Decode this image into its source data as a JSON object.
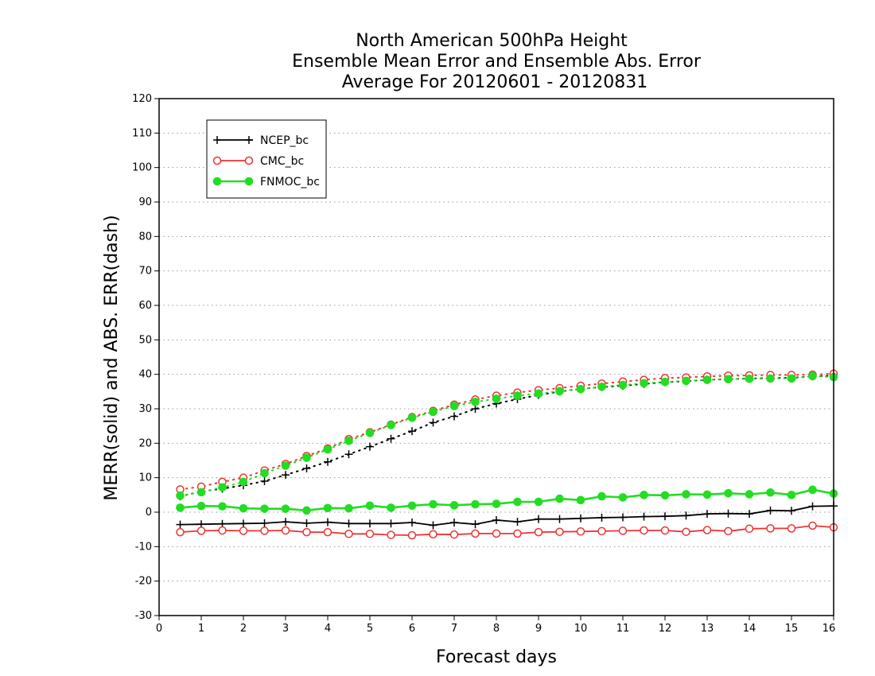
{
  "chart_data": {
    "type": "line",
    "title_lines": [
      "North American 500hPa Height",
      "Ensemble Mean Error and Ensemble Abs. Error",
      "Average For 20120601 - 20120831"
    ],
    "xlabel": "Forecast days",
    "ylabel": "MERR(solid) and ABS. ERR(dash)",
    "xlim": [
      0,
      16
    ],
    "ylim": [
      -30,
      120
    ],
    "xticks": [
      0,
      1,
      2,
      3,
      4,
      5,
      6,
      7,
      8,
      9,
      10,
      11,
      12,
      13,
      14,
      15,
      16
    ],
    "yticks": [
      -30,
      -20,
      -10,
      0,
      10,
      20,
      30,
      40,
      50,
      60,
      70,
      80,
      90,
      100,
      110,
      120
    ],
    "grid": "horizontal dotted",
    "legend_placement": "top-left",
    "x": [
      0.5,
      1,
      1.5,
      2,
      2.5,
      3,
      3.5,
      4,
      4.5,
      5,
      5.5,
      6,
      6.5,
      7,
      7.5,
      8,
      8.5,
      9,
      9.5,
      10,
      10.5,
      11,
      11.5,
      12,
      12.5,
      13,
      13.5,
      14,
      14.5,
      15,
      15.5,
      16
    ],
    "series": [
      {
        "name": "NCEP_bc",
        "color": "#000000",
        "marker": "plus",
        "merr": [
          -3.6,
          -3.5,
          -3.4,
          -3.3,
          -3.2,
          -2.8,
          -3.2,
          -2.9,
          -3.3,
          -3.3,
          -3.3,
          -3.0,
          -3.8,
          -3.0,
          -3.5,
          -2.3,
          -2.8,
          -2.0,
          -2.0,
          -1.8,
          -1.6,
          -1.5,
          -1.3,
          -1.2,
          -1.0,
          -0.5,
          -0.4,
          -0.5,
          0.5,
          0.4,
          1.7,
          1.8
        ],
        "abs_err": [
          4.6,
          6.0,
          6.8,
          7.8,
          9.0,
          10.8,
          12.7,
          14.6,
          16.8,
          19.0,
          21.3,
          23.5,
          26.0,
          27.8,
          30.0,
          31.5,
          32.8,
          34.0,
          35.0,
          35.8,
          36.3,
          36.7,
          37.2,
          37.7,
          38.0,
          38.4,
          38.6,
          38.8,
          38.9,
          39.0,
          39.4,
          39.6
        ]
      },
      {
        "name": "CMC_bc",
        "color": "#ee3333",
        "marker": "open-circle",
        "merr": [
          -5.8,
          -5.4,
          -5.3,
          -5.4,
          -5.4,
          -5.3,
          -5.8,
          -5.8,
          -6.3,
          -6.3,
          -6.6,
          -6.7,
          -6.4,
          -6.5,
          -6.2,
          -6.2,
          -6.2,
          -5.8,
          -5.7,
          -5.6,
          -5.5,
          -5.4,
          -5.3,
          -5.3,
          -5.7,
          -5.2,
          -5.5,
          -4.8,
          -4.7,
          -4.7,
          -3.9,
          -4.4
        ],
        "abs_err": [
          6.6,
          7.4,
          8.8,
          10.0,
          12.1,
          14.0,
          16.3,
          18.5,
          21.2,
          23.2,
          25.4,
          27.6,
          29.4,
          31.2,
          32.7,
          33.8,
          34.7,
          35.4,
          36.0,
          36.7,
          37.3,
          37.9,
          38.4,
          38.9,
          39.1,
          39.4,
          39.6,
          39.7,
          39.8,
          39.8,
          39.9,
          40.2
        ]
      },
      {
        "name": "FNMOC_bc",
        "color": "#22dd22",
        "marker": "filled-circle",
        "merr": [
          1.3,
          1.8,
          1.7,
          1.1,
          1.0,
          1.0,
          0.5,
          1.2,
          1.1,
          1.9,
          1.3,
          1.9,
          2.3,
          2.0,
          2.3,
          2.4,
          3.0,
          3.0,
          3.9,
          3.5,
          4.6,
          4.3,
          5.0,
          4.9,
          5.2,
          5.1,
          5.5,
          5.2,
          5.7,
          5.0,
          6.5,
          5.4
        ],
        "abs_err": [
          4.8,
          5.8,
          7.2,
          8.8,
          11.3,
          13.5,
          15.8,
          18.2,
          20.7,
          23.0,
          25.3,
          27.4,
          29.1,
          30.8,
          32.0,
          32.9,
          33.8,
          34.4,
          35.1,
          35.7,
          36.4,
          36.9,
          37.4,
          37.8,
          38.1,
          38.4,
          38.6,
          38.7,
          38.8,
          38.8,
          39.5,
          39.2
        ]
      }
    ]
  }
}
